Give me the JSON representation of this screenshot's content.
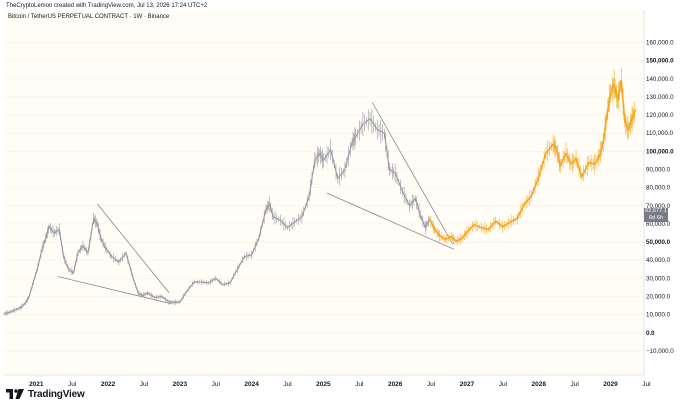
{
  "header": {
    "credit": "TheCryptoLemon created with TradingView.com, Jul 13, 2026 17:24 UTC+2",
    "symbol": "Bitcoin / TetherUS PERPETUAL CONTRACT · 1W · Binance"
  },
  "price_label": {
    "value": "62,677.1",
    "countdown": "6d 6h"
  },
  "footer": {
    "brand": "TradingView"
  },
  "colors": {
    "history": "#9598a1",
    "projection": "#f5a623",
    "trendline": "#787b86",
    "background": "#fffdf5",
    "price_box": "#787b86"
  },
  "chart_data": {
    "type": "line",
    "ylim": [
      -15000,
      168000
    ],
    "y_ticks": [
      "160,000.0",
      "150,000.0",
      "140,000.0",
      "130,000.0",
      "120,000.0",
      "110,000.0",
      "100,000.0",
      "90,000.0",
      "80,000.0",
      "70,000.0",
      "60,000.0",
      "50,000.0",
      "40,000.0",
      "30,000.0",
      "20,000.0",
      "10,000.0",
      "0.0",
      "−10,000.0"
    ],
    "y_tick_values": [
      160000,
      150000,
      140000,
      130000,
      120000,
      110000,
      100000,
      90000,
      80000,
      70000,
      60000,
      50000,
      40000,
      30000,
      20000,
      10000,
      0,
      -10000
    ],
    "bold_y_ticks": [
      "150,000.0",
      "100,000.0",
      "50,000.0",
      "0.0"
    ],
    "x_ticks": [
      "2021",
      "Jul",
      "2022",
      "Jul",
      "2023",
      "Jul",
      "2024",
      "Jul",
      "2025",
      "Jul",
      "2026",
      "Jul",
      "2027",
      "Jul",
      "2028",
      "Jul",
      "2029",
      "Jul"
    ],
    "x_tick_values": [
      2021.0,
      2021.5,
      2022.0,
      2022.5,
      2023.0,
      2023.5,
      2024.0,
      2024.5,
      2025.0,
      2025.5,
      2026.0,
      2026.5,
      2027.0,
      2027.5,
      2028.0,
      2028.5,
      2029.0,
      2029.5
    ],
    "xlim": [
      2020.55,
      2029.55
    ],
    "series": [
      {
        "kind": "history",
        "x": [
          2020.55,
          2020.62,
          2020.7,
          2020.78,
          2020.85,
          2020.9,
          2020.96,
          2021.02,
          2021.08,
          2021.13,
          2021.18,
          2021.25,
          2021.32,
          2021.38,
          2021.45,
          2021.52,
          2021.58,
          2021.65,
          2021.72,
          2021.8,
          2021.85,
          2021.9,
          2021.96,
          2022.05,
          2022.15,
          2022.25,
          2022.35,
          2022.42,
          2022.48,
          2022.55,
          2022.65,
          2022.75,
          2022.85,
          2022.92,
          2023.0,
          2023.1,
          2023.2,
          2023.3,
          2023.4,
          2023.5,
          2023.6,
          2023.7,
          2023.8,
          2023.9,
          2024.0,
          2024.1,
          2024.2,
          2024.25,
          2024.3,
          2024.4,
          2024.5,
          2024.6,
          2024.7,
          2024.8,
          2024.88,
          2024.95,
          2025.0,
          2025.1,
          2025.2,
          2025.3,
          2025.4,
          2025.45,
          2025.55,
          2025.65,
          2025.75,
          2025.85,
          2025.92,
          2026.0,
          2026.1,
          2026.2,
          2026.28,
          2026.35,
          2026.42,
          2026.48
        ],
        "y": [
          10500,
          11200,
          12500,
          13800,
          16500,
          20000,
          28000,
          36000,
          46000,
          52000,
          58500,
          55000,
          57000,
          42000,
          35000,
          33000,
          44000,
          48000,
          44000,
          63000,
          60000,
          52000,
          47000,
          42000,
          39000,
          44000,
          30000,
          22000,
          20500,
          22000,
          19500,
          20000,
          17000,
          16800,
          17000,
          23000,
          28000,
          28000,
          27500,
          30000,
          26500,
          27500,
          35000,
          42000,
          43000,
          52000,
          68000,
          71000,
          64000,
          62000,
          58000,
          61000,
          64000,
          75000,
          95000,
          99000,
          95000,
          101000,
          85000,
          90000,
          105000,
          108000,
          115000,
          118000,
          112000,
          110000,
          90000,
          88000,
          78000,
          70000,
          74000,
          65000,
          58000,
          62677
        ]
      },
      {
        "kind": "projection",
        "x": [
          2026.48,
          2026.55,
          2026.62,
          2026.7,
          2026.78,
          2026.85,
          2026.93,
          2027.0,
          2027.1,
          2027.2,
          2027.3,
          2027.4,
          2027.5,
          2027.6,
          2027.7,
          2027.8,
          2027.9,
          2028.0,
          2028.1,
          2028.2,
          2028.25,
          2028.3,
          2028.38,
          2028.45,
          2028.52,
          2028.6,
          2028.7,
          2028.78,
          2028.85,
          2028.9,
          2028.95,
          2029.0,
          2029.05,
          2029.1,
          2029.15,
          2029.2,
          2029.25,
          2029.3,
          2029.35
        ],
        "y": [
          62677,
          57000,
          53500,
          51500,
          53000,
          50500,
          52000,
          55500,
          59500,
          58000,
          57000,
          61500,
          58500,
          61000,
          63000,
          71000,
          75500,
          86000,
          99000,
          104000,
          101000,
          92000,
          99000,
          93000,
          96000,
          86000,
          94000,
          93000,
          98000,
          105000,
          120000,
          132000,
          137000,
          128000,
          139000,
          116000,
          112000,
          118000,
          123000
        ]
      }
    ],
    "trendlines": [
      {
        "x": [
          2021.3,
          2022.88
        ],
        "y": [
          31000,
          16000
        ]
      },
      {
        "x": [
          2021.85,
          2022.85
        ],
        "y": [
          71000,
          22000
        ]
      },
      {
        "x": [
          2025.05,
          2026.82
        ],
        "y": [
          77000,
          46000
        ]
      },
      {
        "x": [
          2025.68,
          2026.8
        ],
        "y": [
          127000,
          49000
        ]
      }
    ]
  }
}
